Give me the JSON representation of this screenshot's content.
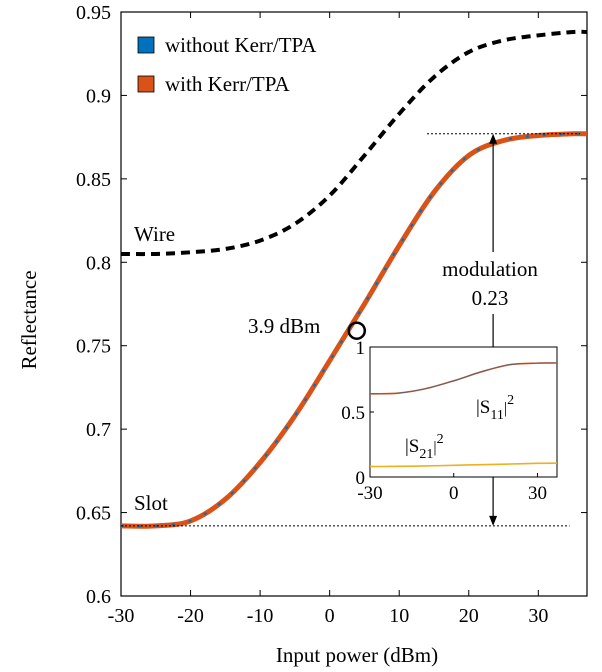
{
  "chart_data": [
    {
      "type": "line",
      "xlabel": "Input power (dBm)",
      "ylabel": "Reflectance",
      "xlim": [
        -30,
        37
      ],
      "ylim": [
        0.6,
        0.95
      ],
      "xticks": [
        -30,
        -20,
        -10,
        0,
        10,
        20,
        30
      ],
      "yticks": [
        0.6,
        0.65,
        0.7,
        0.75,
        0.8,
        0.85,
        0.9,
        0.95
      ],
      "xtick_labels": [
        "-30",
        "-20",
        "-10",
        "0",
        "10",
        "20",
        "30"
      ],
      "ytick_labels": [
        "0.6",
        "0.65",
        "0.7",
        "0.75",
        "0.8",
        "0.85",
        "0.9",
        "0.95"
      ],
      "legend": {
        "placement": "top-left",
        "entries": [
          "without Kerr/TPA",
          "with Kerr/TPA"
        ]
      },
      "series": [
        {
          "name": "Wire",
          "style": "dashed",
          "color": "#000000",
          "x": [
            -30,
            -25,
            -20,
            -15,
            -10,
            -5,
            0,
            5,
            10,
            15,
            20,
            25,
            30,
            35,
            37
          ],
          "y": [
            0.805,
            0.805,
            0.806,
            0.808,
            0.813,
            0.823,
            0.84,
            0.864,
            0.889,
            0.911,
            0.926,
            0.933,
            0.936,
            0.938,
            0.938
          ]
        },
        {
          "name": "without Kerr/TPA",
          "style": "solid",
          "color": "#0072BD",
          "x": [
            -30,
            -25,
            -20,
            -15,
            -10,
            -5,
            0,
            5,
            10,
            15,
            20,
            25,
            30,
            35,
            37
          ],
          "y": [
            0.642,
            0.642,
            0.645,
            0.658,
            0.68,
            0.708,
            0.741,
            0.775,
            0.81,
            0.842,
            0.864,
            0.873,
            0.876,
            0.877,
            0.877
          ]
        },
        {
          "name": "with Kerr/TPA",
          "style": "solid",
          "color": "#D95319",
          "x": [
            -30,
            -25,
            -20,
            -15,
            -10,
            -5,
            0,
            5,
            10,
            15,
            20,
            25,
            30,
            35,
            37
          ],
          "y": [
            0.642,
            0.642,
            0.645,
            0.658,
            0.68,
            0.708,
            0.741,
            0.775,
            0.81,
            0.842,
            0.864,
            0.873,
            0.876,
            0.877,
            0.877
          ]
        }
      ],
      "annotations": {
        "wire_label": "Wire",
        "slot_label": "Slot",
        "point_label": "3.9 dBm",
        "point": {
          "x": 3.9,
          "y": 0.759
        },
        "modulation_label": "modulation",
        "modulation_value": "0.23",
        "arrow_x": 23.5,
        "upper_ref": 0.877,
        "lower_ref": 0.642
      }
    },
    {
      "type": "line",
      "xlim": [
        -30,
        37
      ],
      "ylim": [
        0,
        1
      ],
      "xticks": [
        -30,
        0,
        30
      ],
      "yticks": [
        0,
        0.5,
        1
      ],
      "xtick_labels": [
        "-30",
        "0",
        "30"
      ],
      "ytick_labels": [
        "0",
        "0.5",
        "1"
      ],
      "series": [
        {
          "name": "|S11|^2",
          "style": "solid",
          "color": "#D95319",
          "x": [
            -30,
            -20,
            -10,
            0,
            10,
            20,
            30,
            37
          ],
          "y": [
            0.64,
            0.645,
            0.68,
            0.74,
            0.81,
            0.864,
            0.876,
            0.877
          ]
        },
        {
          "name": "|S21|^2",
          "style": "solid",
          "color": "#EDB120",
          "x": [
            -30,
            -20,
            -10,
            0,
            10,
            20,
            30,
            37
          ],
          "y": [
            0.08,
            0.082,
            0.085,
            0.09,
            0.095,
            0.1,
            0.105,
            0.106
          ]
        }
      ],
      "labels": {
        "s11_base": "|S",
        "s11_sub": "11",
        "s11_sup": "2",
        "s21_base": "|S",
        "s21_sub": "21",
        "s21_sup": "2"
      }
    }
  ]
}
